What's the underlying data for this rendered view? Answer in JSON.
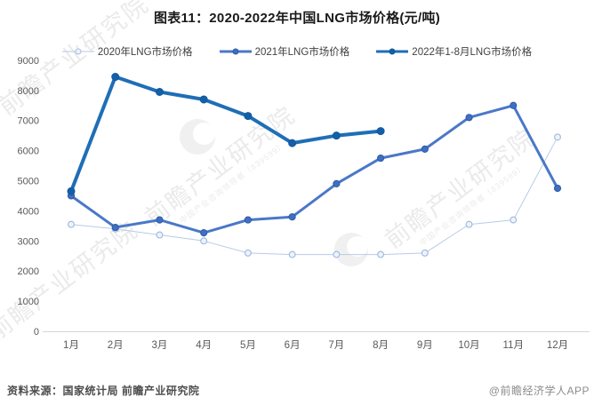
{
  "header": {
    "title": "图表11：2020-2022年中国LNG市场价格(元/吨)"
  },
  "chart_data": {
    "type": "line",
    "title": "图表11：2020-2022年中国LNG市场价格(元/吨)",
    "categories": [
      "1月",
      "2月",
      "3月",
      "4月",
      "5月",
      "6月",
      "7月",
      "8月",
      "9月",
      "10月",
      "11月",
      "12月"
    ],
    "series": [
      {
        "name": "2020年LNG市场价格",
        "values": [
          3550,
          3400,
          3200,
          3000,
          2600,
          2550,
          2550,
          2550,
          2600,
          3550,
          3700,
          6450
        ],
        "line_color": "#b7cbe8",
        "line_width": 1,
        "marker": "open-circle",
        "marker_fill": "#eef3fb",
        "marker_stroke": "#a3bce0"
      },
      {
        "name": "2021年LNG市场价格",
        "values": [
          4500,
          3450,
          3700,
          3270,
          3700,
          3800,
          4900,
          5750,
          6050,
          7100,
          7500,
          4750
        ],
        "line_color": "#4a78c8",
        "line_width": 3,
        "marker": "filled-circle",
        "marker_fill": "#3f6fc0",
        "marker_stroke": "#2f5ba8"
      },
      {
        "name": "2022年1-8月LNG市场价格",
        "values": [
          4650,
          8450,
          7950,
          7700,
          7150,
          6250,
          6500,
          6650
        ],
        "line_color": "#1f6eb6",
        "line_width": 4,
        "marker": "filled-circle",
        "marker_fill": "#1360a9",
        "marker_stroke": "#10589d"
      }
    ],
    "ylim": [
      0,
      9000
    ],
    "y_ticks": [
      0,
      1000,
      2000,
      3000,
      4000,
      5000,
      6000,
      7000,
      8000,
      9000
    ],
    "grid": false,
    "legend_position": "top",
    "axis_label_color": "#595959",
    "axis_line_color": "#d6d6d6"
  },
  "footer": {
    "source": "资料来源：国家统计局 前瞻产业研究院",
    "brand": "@前瞻经济学人APP"
  },
  "watermark": {
    "text": "前瞻产业研究院",
    "subtext": "中国产业咨询领导者（839599）"
  }
}
